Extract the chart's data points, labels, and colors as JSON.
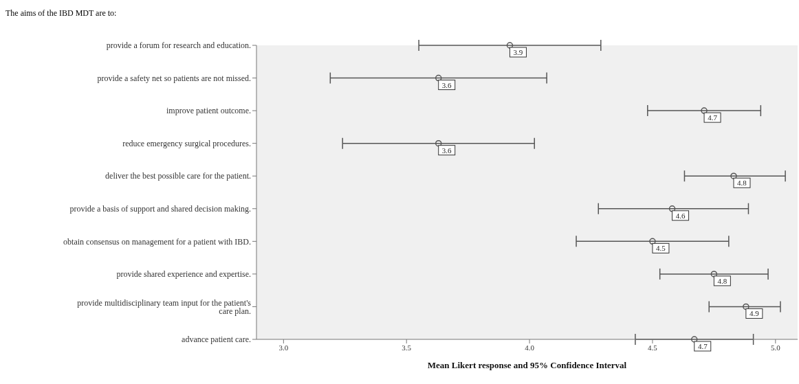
{
  "chart_data": {
    "type": "scatter",
    "orientation": "horizontal",
    "title": "The aims of the IBD MDT are to:",
    "xlabel": "Mean Likert response and 95% Confidence Interval",
    "categories": [
      "provide a forum for research and education.",
      "provide a safety net so patients are not missed.",
      "improve patient outcome.",
      "reduce emergency surgical procedures.",
      "deliver the best possible care for the patient.",
      "provide a basis of support and shared decision making.",
      "obtain consensus on management for a patient with IBD.",
      "provide shared experience and expertise.",
      "provide multidisciplinary team input for the patient's care plan.",
      "advance patient care."
    ],
    "values": [
      3.92,
      3.63,
      4.71,
      3.63,
      4.83,
      4.58,
      4.5,
      4.75,
      4.88,
      4.67
    ],
    "errors": [
      [
        3.55,
        4.29
      ],
      [
        3.19,
        4.07
      ],
      [
        4.48,
        4.94
      ],
      [
        3.24,
        4.02
      ],
      [
        4.63,
        5.04
      ],
      [
        4.28,
        4.89
      ],
      [
        4.19,
        4.81
      ],
      [
        4.53,
        4.97
      ],
      [
        4.73,
        5.02
      ],
      [
        4.43,
        4.91
      ]
    ],
    "value_labels": [
      "3.9",
      "3.6",
      "4.7",
      "3.6",
      "4.8",
      "4.6",
      "4.5",
      "4.8",
      "4.9",
      "4.7"
    ],
    "color": "#555555",
    "marker": "circle",
    "grid": false,
    "legend": false,
    "xlim": [
      2.89,
      5.09
    ],
    "xticks": [
      {
        "value": 3,
        "label": "3.0"
      },
      {
        "value": 3.5,
        "label": "3.5"
      },
      {
        "value": 4,
        "label": "4.0"
      },
      {
        "value": 4.5,
        "label": "4.5"
      },
      {
        "value": 5,
        "label": "5.0"
      }
    ]
  }
}
